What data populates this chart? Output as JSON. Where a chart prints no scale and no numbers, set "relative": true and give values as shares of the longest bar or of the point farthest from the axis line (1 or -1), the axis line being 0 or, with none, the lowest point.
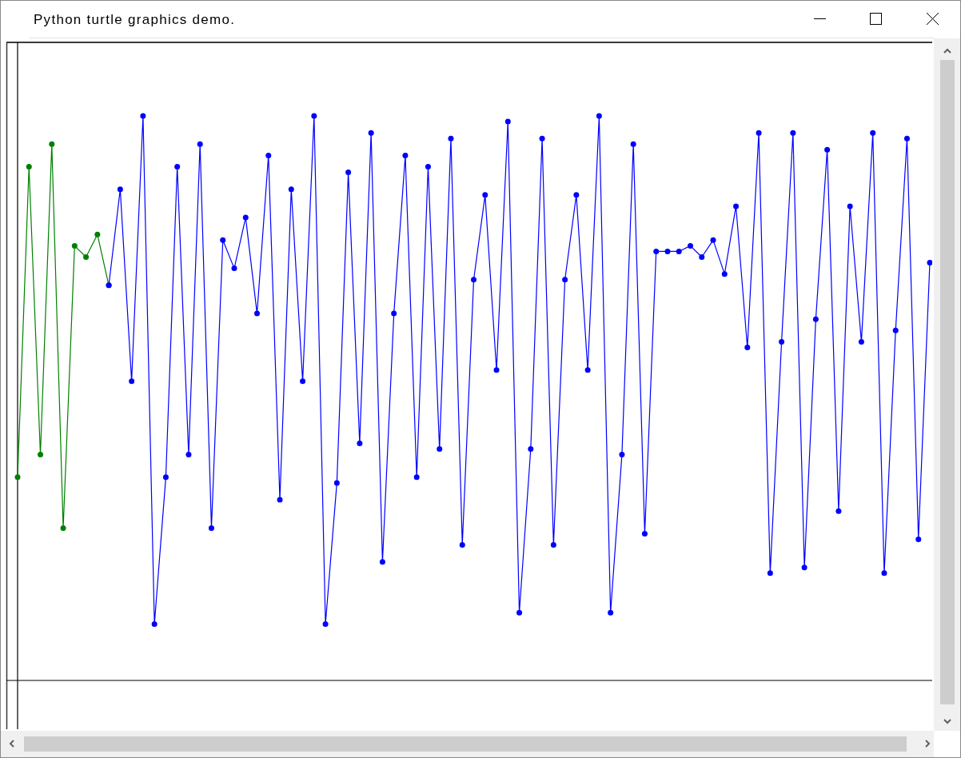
{
  "chart_data": {
    "type": "line",
    "title": "Python turtle graphics demo.",
    "relative": true,
    "marker": "circle",
    "line_style": "solid",
    "categories": [
      null,
      null,
      null,
      null,
      null,
      null,
      null,
      null,
      null,
      null,
      null,
      null,
      null,
      null,
      null,
      null,
      null,
      null,
      null,
      null,
      null,
      null,
      null,
      null,
      null,
      null,
      null,
      null,
      null,
      null,
      null,
      null,
      null,
      null,
      null,
      null,
      null,
      null,
      null,
      null,
      null,
      null,
      null,
      null,
      null,
      null,
      null,
      null,
      null,
      null,
      null,
      null,
      null,
      null,
      null,
      null,
      null,
      null,
      null,
      null,
      null,
      null,
      null,
      null,
      null,
      null,
      null,
      null,
      null,
      null,
      null,
      null,
      null,
      null,
      null,
      null,
      null,
      null,
      null,
      null,
      null
    ],
    "series": [
      {
        "color": "#008000",
        "values": [
          0.36,
          0.91,
          0.4,
          0.95,
          0.27,
          0.77,
          0.75,
          0.79,
          0.7,
          null,
          null,
          null,
          null,
          null,
          null,
          null,
          null,
          null,
          null,
          null,
          null,
          null,
          null,
          null,
          null,
          null,
          null,
          null,
          null,
          null,
          null,
          null,
          null,
          null,
          null,
          null,
          null,
          null,
          null,
          null,
          null,
          null,
          null,
          null,
          null,
          null,
          null,
          null,
          null,
          null,
          null,
          null,
          null,
          null,
          null,
          null,
          null,
          null,
          null,
          null,
          null,
          null,
          null,
          null,
          null,
          null,
          null,
          null,
          null,
          null,
          null,
          null,
          null,
          null,
          null,
          null,
          null,
          null,
          null,
          null,
          null
        ]
      },
      {
        "color": "#0000ff",
        "values": [
          null,
          null,
          null,
          null,
          null,
          null,
          null,
          null,
          0.7,
          0.87,
          0.53,
          1.0,
          0.1,
          0.36,
          0.91,
          0.4,
          0.95,
          0.27,
          0.78,
          0.73,
          0.82,
          0.65,
          0.93,
          0.32,
          0.87,
          0.53,
          1.0,
          0.1,
          0.35,
          0.9,
          0.42,
          0.97,
          0.21,
          0.65,
          0.93,
          0.36,
          0.91,
          0.41,
          0.96,
          0.24,
          0.71,
          0.86,
          0.55,
          0.99,
          0.12,
          0.41,
          0.96,
          0.24,
          0.71,
          0.86,
          0.55,
          1.0,
          0.12,
          0.4,
          0.95,
          0.26,
          0.76,
          0.76,
          0.76,
          0.77,
          0.75,
          0.78,
          0.72,
          0.84,
          0.59,
          0.97,
          0.19,
          0.6,
          0.97,
          0.2,
          0.64,
          0.94,
          0.3,
          0.84,
          0.6,
          0.97,
          0.19,
          0.62,
          0.96,
          0.25,
          0.74
        ]
      }
    ]
  }
}
